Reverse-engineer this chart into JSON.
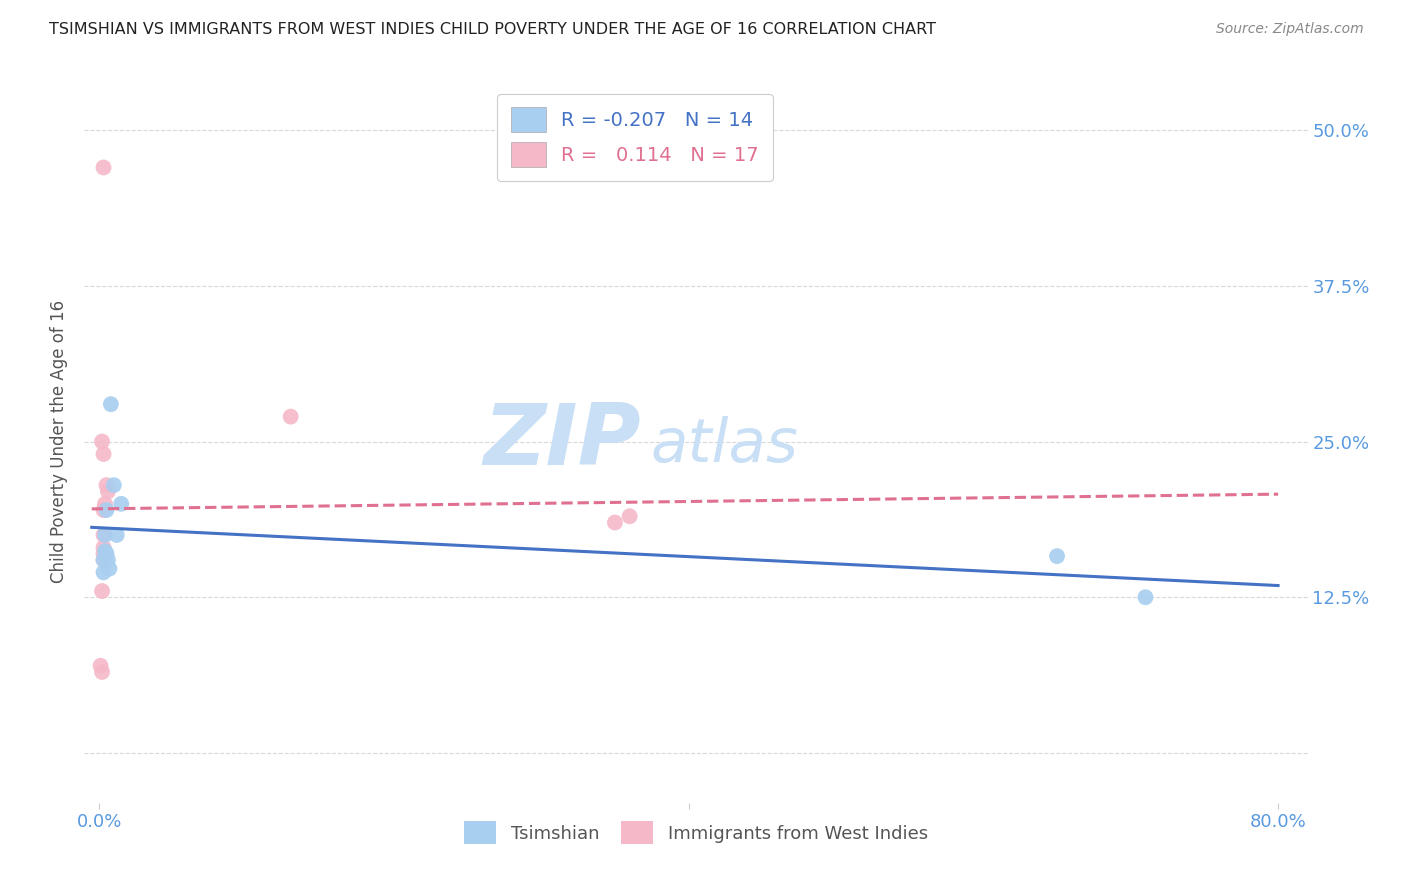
{
  "title": "TSIMSHIAN VS IMMIGRANTS FROM WEST INDIES CHILD POVERTY UNDER THE AGE OF 16 CORRELATION CHART",
  "source": "Source: ZipAtlas.com",
  "ylabel": "Child Poverty Under the Age of 16",
  "xlim": [
    -0.01,
    0.82
  ],
  "ylim": [
    -0.04,
    0.54
  ],
  "x_tick_vals": [
    0.0,
    0.4,
    0.8
  ],
  "x_tick_labels": [
    "0.0%",
    "",
    "80.0%"
  ],
  "y_tick_vals": [
    0.0,
    0.125,
    0.25,
    0.375,
    0.5
  ],
  "y_tick_labels": [
    "",
    "12.5%",
    "25.0%",
    "37.5%",
    "50.0%"
  ],
  "tsimshian_x": [
    0.003,
    0.003,
    0.004,
    0.004,
    0.005,
    0.005,
    0.006,
    0.007,
    0.008,
    0.01,
    0.012,
    0.015,
    0.65,
    0.71
  ],
  "tsimshian_y": [
    0.155,
    0.145,
    0.175,
    0.162,
    0.16,
    0.195,
    0.155,
    0.148,
    0.28,
    0.215,
    0.175,
    0.2,
    0.158,
    0.125
  ],
  "west_indies_x": [
    0.001,
    0.002,
    0.002,
    0.003,
    0.003,
    0.003,
    0.003,
    0.003,
    0.004,
    0.005,
    0.006,
    0.13,
    0.35,
    0.36,
    0.003,
    0.002,
    0.003
  ],
  "west_indies_y": [
    0.07,
    0.065,
    0.13,
    0.175,
    0.165,
    0.16,
    0.155,
    0.195,
    0.2,
    0.215,
    0.21,
    0.27,
    0.185,
    0.19,
    0.24,
    0.25,
    0.47
  ],
  "R_tsimshian": -0.207,
  "N_tsimshian": 14,
  "R_west_indies": 0.114,
  "N_west_indies": 17,
  "color_tsimshian": "#a8cef0",
  "color_west_indies": "#f5b8c8",
  "color_line_tsimshian": "#4472c4",
  "color_line_west_indies": "#e07090",
  "background_color": "#ffffff",
  "grid_color": "#d8d8d8",
  "title_color": "#222222",
  "axis_label_color": "#5a9ae0",
  "watermark_zip_color": "#c8dff5",
  "watermark_atlas_color": "#c8dff5"
}
